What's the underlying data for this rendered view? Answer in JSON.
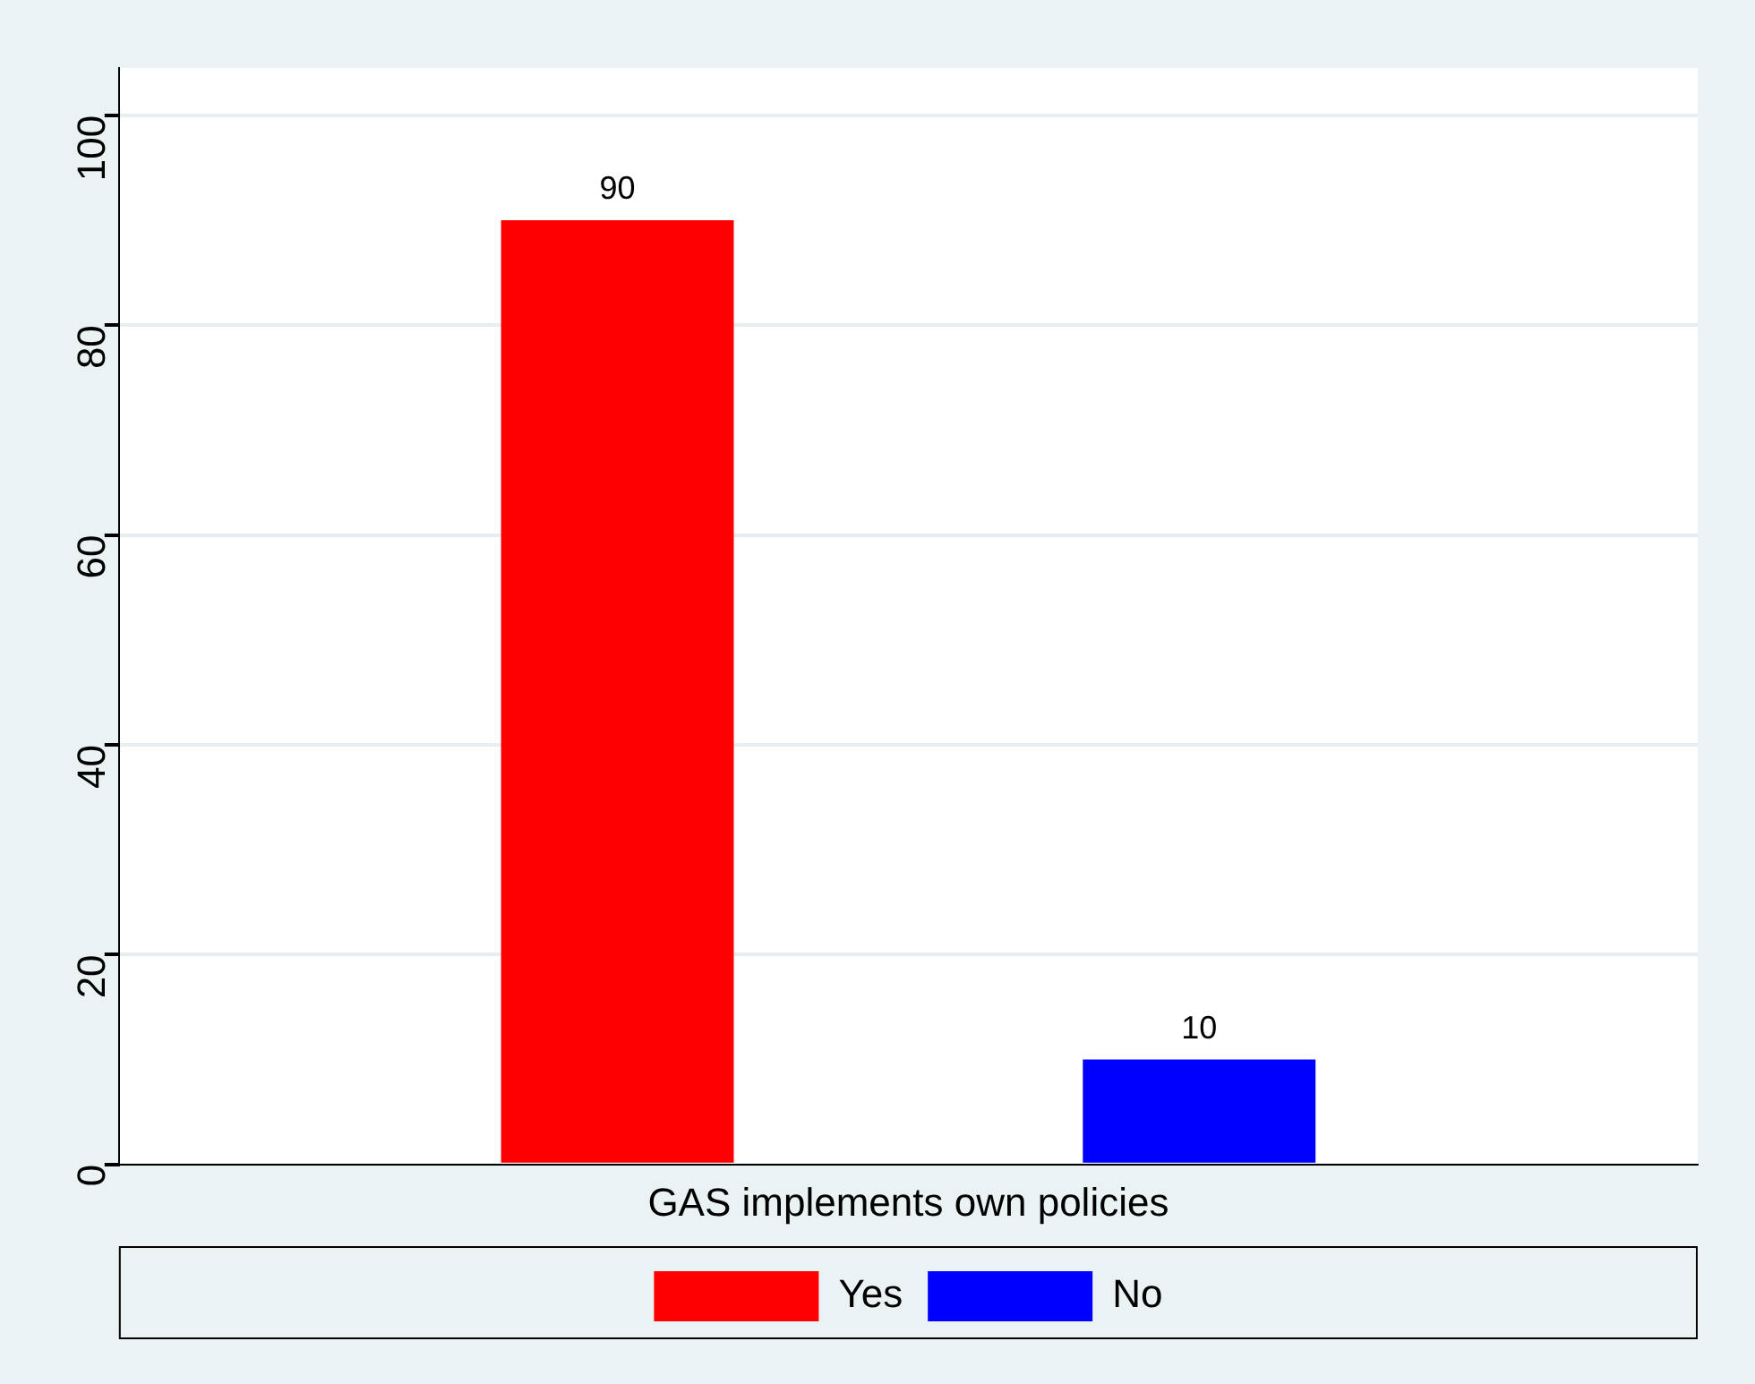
{
  "chart_data": {
    "type": "bar",
    "xlabel": "GAS implements own policies",
    "categories": [
      null
    ],
    "series": [
      {
        "name": "Yes",
        "color": "#ff0000",
        "values": [
          90
        ]
      },
      {
        "name": "No",
        "color": "#0000ff",
        "values": [
          10
        ]
      }
    ],
    "ylim": [
      0,
      104.5
    ],
    "yticks": [
      0,
      20,
      40,
      60,
      80,
      100
    ],
    "grid": "y",
    "legend": "bottom",
    "data_labels": true
  }
}
